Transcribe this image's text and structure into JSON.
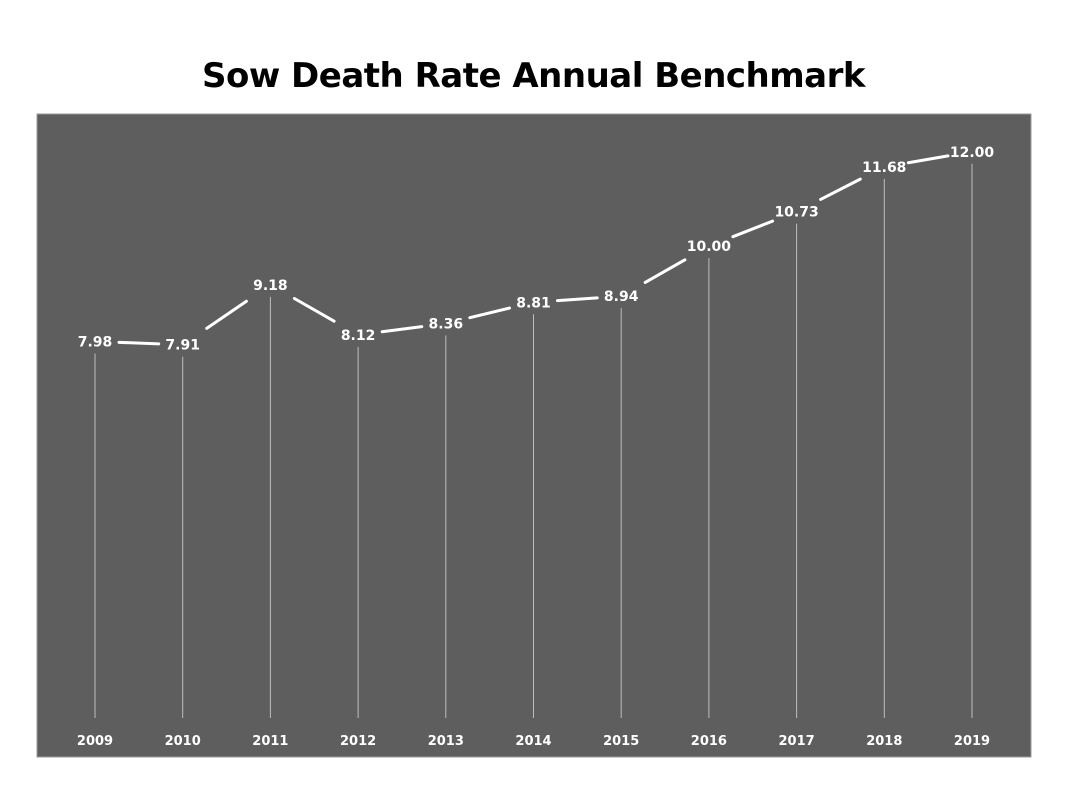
{
  "chart_data": {
    "type": "line",
    "title": "Sow Death Rate Annual Benchmark",
    "xlabel": "",
    "ylabel": "",
    "categories": [
      "2009",
      "2010",
      "2011",
      "2012",
      "2013",
      "2014",
      "2015",
      "2016",
      "2017",
      "2018",
      "2019"
    ],
    "values": [
      7.98,
      7.91,
      9.18,
      8.12,
      8.36,
      8.81,
      8.94,
      10.0,
      10.73,
      11.68,
      12.0
    ],
    "value_labels": [
      "7.98",
      "7.91",
      "9.18",
      "8.12",
      "8.36",
      "8.81",
      "8.94",
      "10.00",
      "10.73",
      "11.68",
      "12.00"
    ],
    "ylim": [
      0,
      12.8
    ],
    "grid": false,
    "drop_lines": true,
    "legend": "none",
    "colors": {
      "plot_background": "#5e5e5e",
      "line": "#ffffff",
      "drop_line": "#bdbdbd",
      "text": "#ffffff",
      "title": "#000000"
    }
  }
}
